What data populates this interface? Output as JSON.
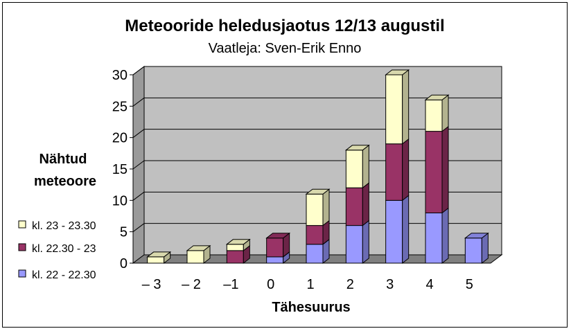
{
  "chart_data": {
    "type": "bar",
    "stacked": true,
    "three_d": true,
    "title": "Meteooride heledusjaotus 12/13 augustil",
    "subtitle": "Vaatleja: Sven-Erik Enno",
    "xlabel": "Tähesuurus",
    "ylabel_line1": "Nähtud",
    "ylabel_line2": "meteoore",
    "categories": [
      "– 3",
      "– 2",
      "–1",
      "0",
      "1",
      "2",
      "3",
      "4",
      "5"
    ],
    "ylim": [
      0,
      30
    ],
    "yticks": [
      0,
      5,
      10,
      15,
      20,
      25,
      30
    ],
    "grid": true,
    "legend_position": "left",
    "series": [
      {
        "name": "kl. 22 - 22.30",
        "color": "#9999ff",
        "values": [
          0,
          0,
          0,
          1,
          3,
          6,
          10,
          8,
          4
        ]
      },
      {
        "name": "kl. 22.30 - 23",
        "color": "#993366",
        "values": [
          0,
          0,
          2,
          3,
          3,
          6,
          9,
          13,
          0
        ]
      },
      {
        "name": "kl. 23 - 23.30",
        "color": "#ffffcc",
        "values": [
          1,
          2,
          1,
          0,
          5,
          6,
          11,
          5,
          0
        ]
      }
    ],
    "legend_order": [
      2,
      1,
      0
    ],
    "wall_color": "#c0c0c0",
    "floor_color": "#808080"
  }
}
